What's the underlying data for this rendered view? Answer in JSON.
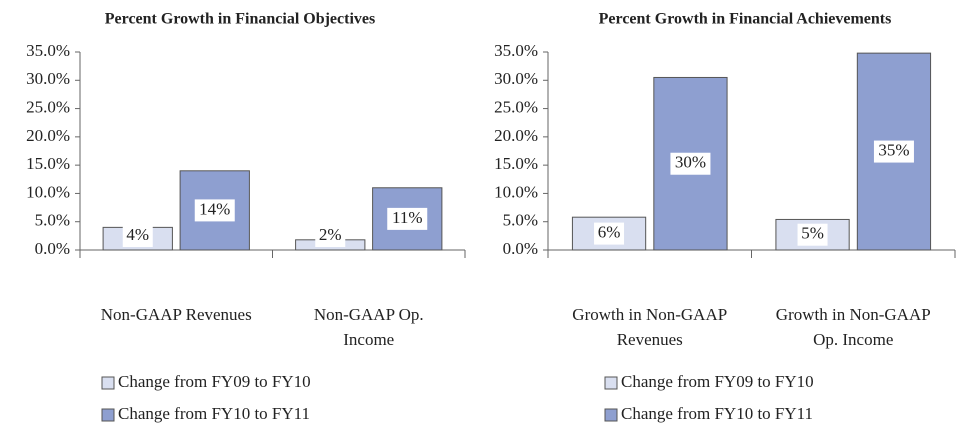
{
  "chart_data": [
    {
      "type": "bar",
      "title": "Percent Growth in Financial Objectives",
      "categories": [
        "Non-GAAP Revenues",
        "Non-GAAP Op. Income"
      ],
      "series": [
        {
          "name": "Change from FY09 to FY10",
          "color": "#d9dff0",
          "values": [
            4,
            1.8
          ],
          "value_labels": [
            "4%",
            "2%"
          ]
        },
        {
          "name": "Change from FY10 to FY11",
          "color": "#8e9fd0",
          "values": [
            14,
            11
          ],
          "value_labels": [
            "14%",
            "11%"
          ]
        }
      ],
      "ylim": [
        0,
        35
      ],
      "yticks": [
        {
          "value": 0,
          "label": "0.0%"
        },
        {
          "value": 5,
          "label": "5.0%"
        },
        {
          "value": 10,
          "label": "10.0%"
        },
        {
          "value": 15,
          "label": "15.0%"
        },
        {
          "value": 20,
          "label": "20.0%"
        },
        {
          "value": 25,
          "label": "25.0%"
        },
        {
          "value": 30,
          "label": "30.0%"
        },
        {
          "value": 35,
          "label": "35.0%"
        }
      ]
    },
    {
      "type": "bar",
      "title": "Percent Growth in Financial Achievements",
      "categories": [
        "Growth in Non-GAAP Revenues",
        "Growth in Non-GAAP Op. Income"
      ],
      "series": [
        {
          "name": "Change from FY09 to FY10",
          "color": "#d9dff0",
          "values": [
            5.8,
            5.4
          ],
          "value_labels": [
            "6%",
            "5%"
          ]
        },
        {
          "name": "Change from FY10 to FY11",
          "color": "#8e9fd0",
          "values": [
            30.5,
            34.8
          ],
          "value_labels": [
            "30%",
            "35%"
          ]
        }
      ],
      "ylim": [
        0,
        35
      ],
      "yticks": [
        {
          "value": 0,
          "label": "0.0%"
        },
        {
          "value": 5,
          "label": "5.0%"
        },
        {
          "value": 10,
          "label": "10.0%"
        },
        {
          "value": 15,
          "label": "15.0%"
        },
        {
          "value": 20,
          "label": "20.0%"
        },
        {
          "value": 25,
          "label": "25.0%"
        },
        {
          "value": 30,
          "label": "30.0%"
        },
        {
          "value": 35,
          "label": "35.0%"
        }
      ]
    }
  ]
}
